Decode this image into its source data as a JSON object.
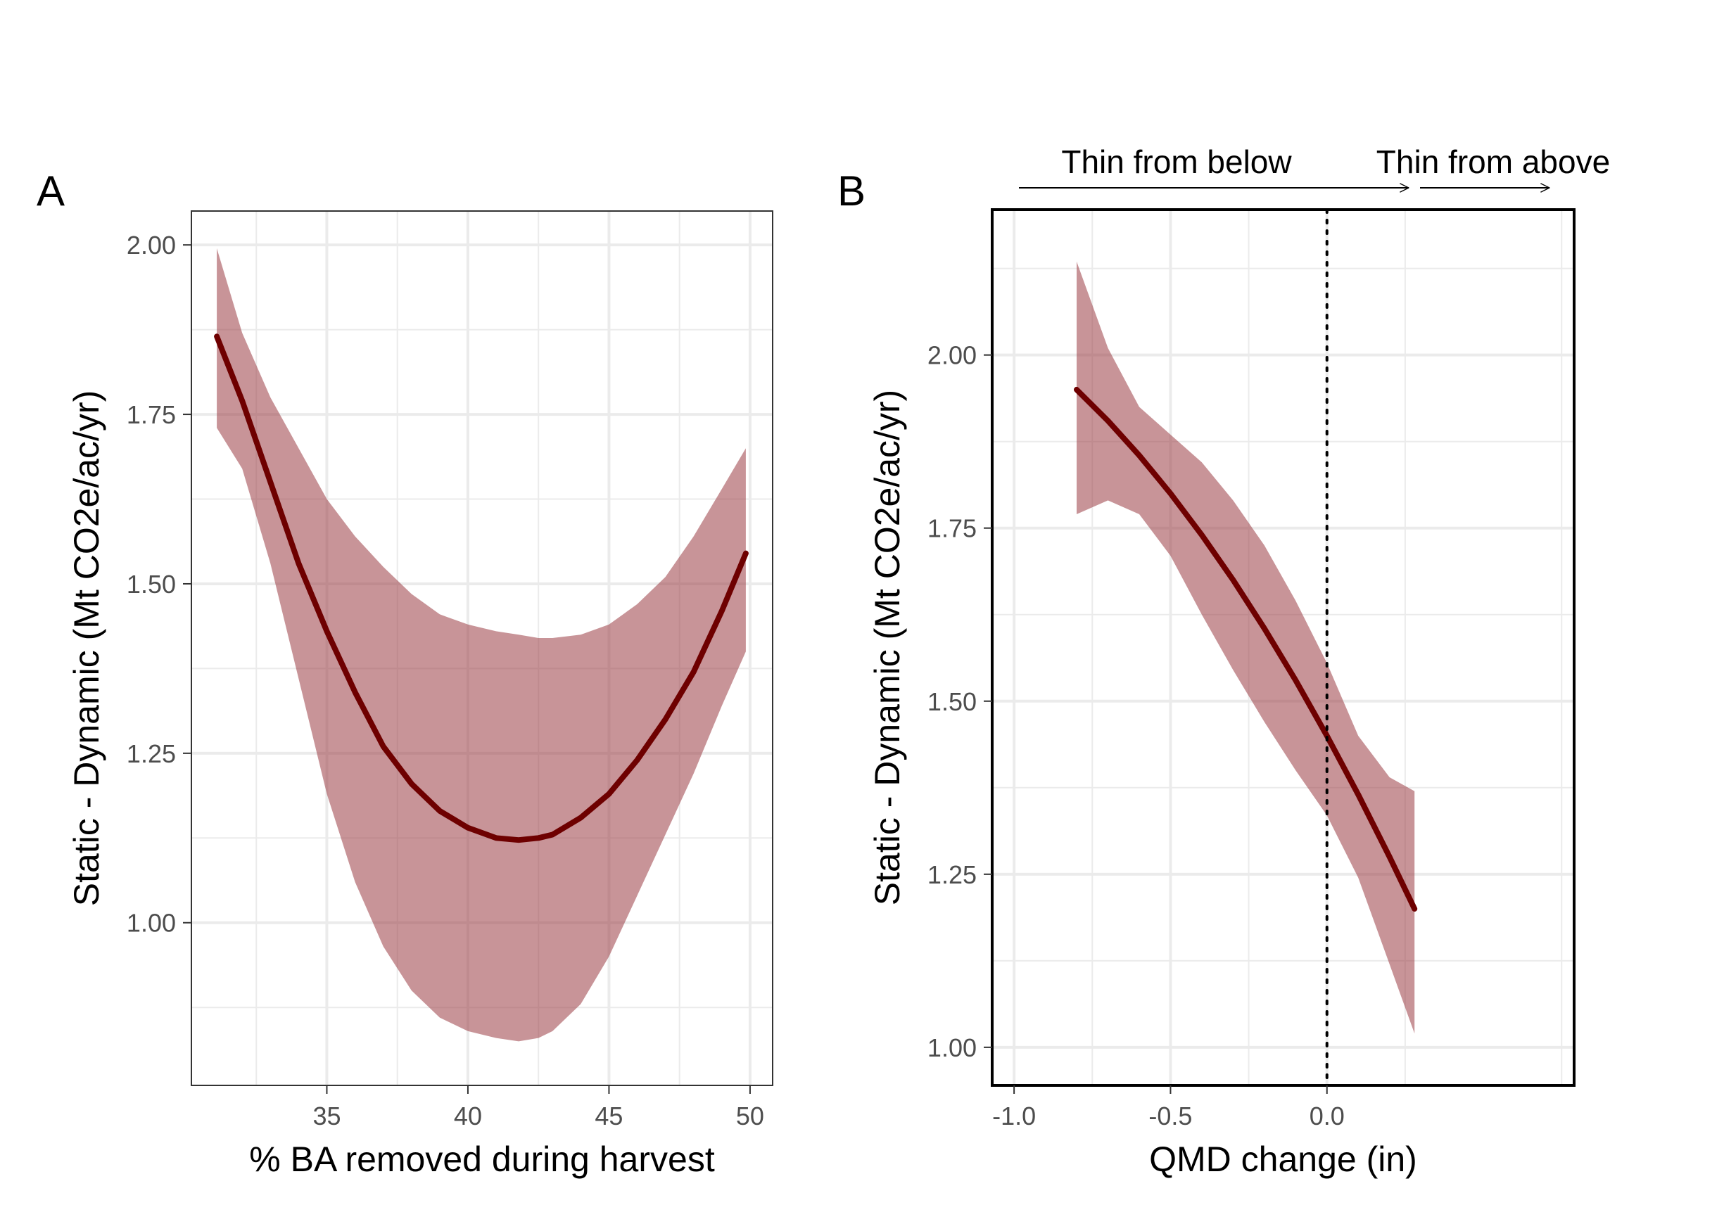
{
  "colors": {
    "line": "#6e0000",
    "ribbon": "#9a3c44",
    "grid": "#ebebeb",
    "panel_border": "#333333",
    "tick_text": "#4d4d4d",
    "reference_line": "#000000"
  },
  "chart_data": [
    {
      "type": "line",
      "panel_label": "A",
      "xlabel": "% BA removed during harvest",
      "ylabel": "Static - Dynamic (Mt CO2e/ac/yr)",
      "xlim": [
        30.2,
        50.8
      ],
      "ylim": [
        0.76,
        2.05
      ],
      "xticks": [
        35,
        40,
        45,
        50
      ],
      "xtick_labels": [
        "35",
        "40",
        "45",
        "50"
      ],
      "yticks": [
        1.0,
        1.25,
        1.5,
        1.75,
        2.0
      ],
      "ytick_labels": [
        "1.00",
        "1.25",
        "1.50",
        "1.75",
        "2.00"
      ],
      "grid": true,
      "series": [
        {
          "x": [
            31.1,
            32,
            33,
            34,
            35,
            36,
            37,
            38,
            39,
            40,
            41,
            41.8,
            42.5,
            43,
            44,
            45,
            46,
            47,
            48,
            49,
            49.85
          ],
          "y": [
            1.865,
            1.77,
            1.65,
            1.53,
            1.43,
            1.34,
            1.26,
            1.205,
            1.165,
            1.14,
            1.125,
            1.122,
            1.125,
            1.13,
            1.155,
            1.19,
            1.24,
            1.3,
            1.37,
            1.46,
            1.545
          ],
          "lower": [
            1.73,
            1.67,
            1.53,
            1.36,
            1.19,
            1.06,
            0.965,
            0.9,
            0.86,
            0.84,
            0.83,
            0.825,
            0.83,
            0.84,
            0.88,
            0.95,
            1.04,
            1.13,
            1.22,
            1.32,
            1.4
          ],
          "upper": [
            1.995,
            1.87,
            1.775,
            1.7,
            1.625,
            1.57,
            1.525,
            1.485,
            1.455,
            1.44,
            1.43,
            1.425,
            1.42,
            1.42,
            1.425,
            1.44,
            1.47,
            1.51,
            1.57,
            1.64,
            1.7
          ]
        }
      ]
    },
    {
      "type": "line",
      "panel_label": "B",
      "xlabel": "QMD change (in)",
      "ylabel": "Static - Dynamic (Mt CO2e/ac/yr)",
      "xlim": [
        -1.07,
        0.79
      ],
      "ylim": [
        0.945,
        2.21
      ],
      "xticks": [
        -1.0,
        -0.5,
        0.0
      ],
      "xtick_labels": [
        "-1.0",
        "-0.5",
        "0.0"
      ],
      "yticks": [
        1.0,
        1.25,
        1.5,
        1.75,
        2.0
      ],
      "ytick_labels": [
        "1.00",
        "1.25",
        "1.50",
        "1.75",
        "2.00"
      ],
      "grid": true,
      "reference_x": 0.0,
      "series": [
        {
          "x": [
            -0.8,
            -0.7,
            -0.6,
            -0.5,
            -0.4,
            -0.3,
            -0.2,
            -0.1,
            0.0,
            0.1,
            0.2,
            0.28
          ],
          "y": [
            1.95,
            1.905,
            1.855,
            1.8,
            1.74,
            1.675,
            1.605,
            1.53,
            1.45,
            1.365,
            1.275,
            1.2
          ],
          "lower": [
            1.77,
            1.79,
            1.77,
            1.71,
            1.625,
            1.545,
            1.47,
            1.4,
            1.335,
            1.245,
            1.12,
            1.02
          ],
          "upper": [
            2.135,
            2.01,
            1.925,
            1.885,
            1.845,
            1.79,
            1.725,
            1.645,
            1.555,
            1.45,
            1.39,
            1.37
          ]
        }
      ],
      "annotations": {
        "left_arrow_label": "Thin from below",
        "right_arrow_label": "Thin from above"
      }
    }
  ]
}
